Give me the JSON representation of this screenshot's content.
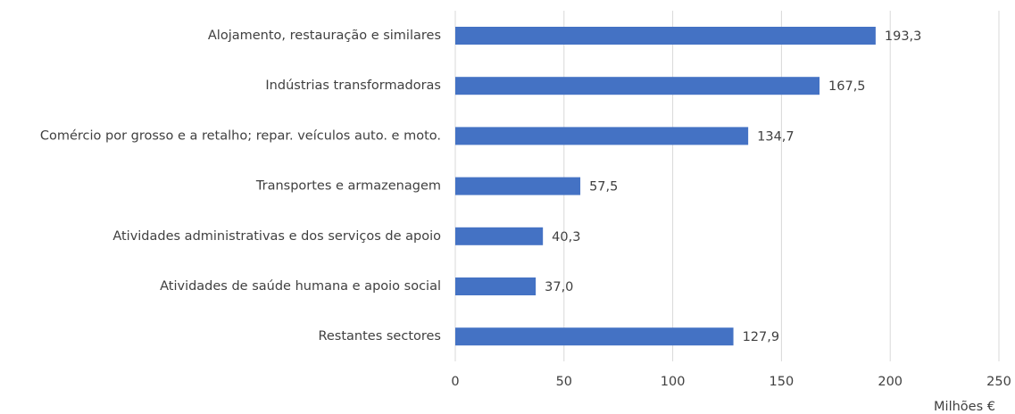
{
  "chart_data": {
    "type": "barh",
    "categories": [
      "Alojamento, restauração e similares",
      "Indústrias transformadoras",
      "Comércio por grosso e a retalho; repar. veículos auto. e moto.",
      "Transportes e armazenagem",
      "Atividades administrativas e dos serviços de apoio",
      "Atividades de saúde humana e apoio social",
      "Restantes sectores"
    ],
    "values": [
      193.3,
      167.5,
      134.7,
      57.5,
      40.3,
      37.0,
      127.9
    ],
    "value_labels": [
      "193,3",
      "167,5",
      "134,7",
      "57,5",
      "40,3",
      "37,0",
      "127,9"
    ],
    "color": "#4472c4",
    "xlim": [
      0,
      250
    ],
    "xticks": [
      0,
      50,
      100,
      150,
      200,
      250
    ],
    "x_label": "Milhões €",
    "grid": true
  }
}
